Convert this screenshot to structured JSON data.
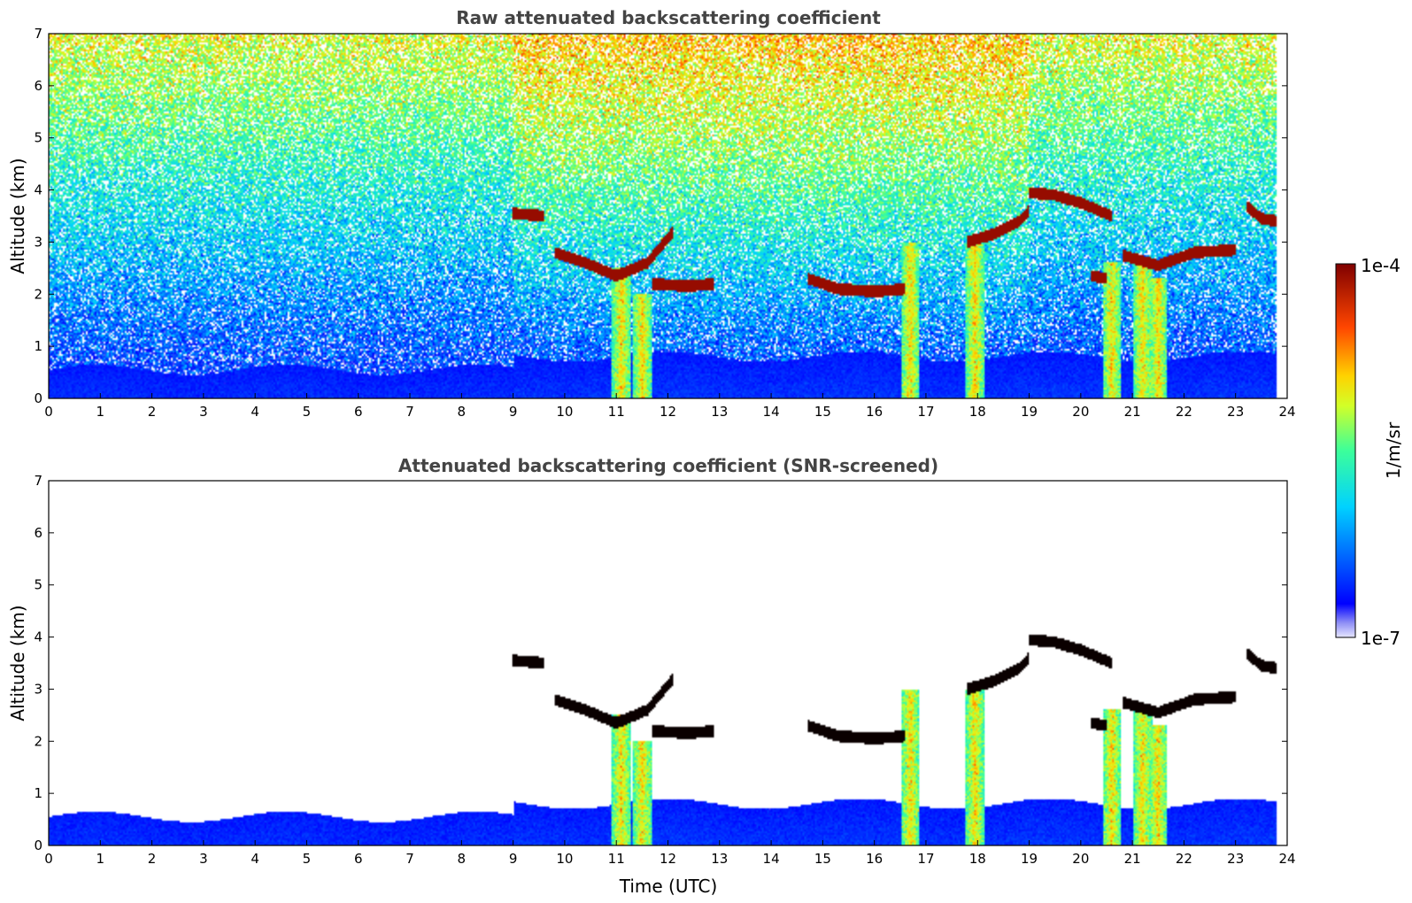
{
  "chart_data": [
    {
      "type": "heatmap",
      "title": "Raw attenuated backscattering coefficient",
      "xlabel": "",
      "ylabel": "Altitude (km)",
      "xlim": [
        0,
        24
      ],
      "ylim": [
        0,
        7
      ],
      "xticks": [
        "0",
        "1",
        "2",
        "3",
        "4",
        "5",
        "6",
        "7",
        "8",
        "9",
        "10",
        "11",
        "12",
        "13",
        "14",
        "15",
        "16",
        "17",
        "18",
        "19",
        "20",
        "21",
        "22",
        "23",
        "24"
      ],
      "yticks": [
        "0",
        "1",
        "2",
        "3",
        "4",
        "5",
        "6",
        "7"
      ],
      "data_end_time": 23.8,
      "grid": false
    },
    {
      "type": "heatmap",
      "title": "Attenuated backscattering coefficient (SNR-screened)",
      "xlabel": "Time (UTC)",
      "ylabel": "Altitude (km)",
      "xlim": [
        0,
        24
      ],
      "ylim": [
        0,
        7
      ],
      "xticks": [
        "0",
        "1",
        "2",
        "3",
        "4",
        "5",
        "6",
        "7",
        "8",
        "9",
        "10",
        "11",
        "12",
        "13",
        "14",
        "15",
        "16",
        "17",
        "18",
        "19",
        "20",
        "21",
        "22",
        "23",
        "24"
      ],
      "yticks": [
        "0",
        "1",
        "2",
        "3",
        "4",
        "5",
        "6",
        "7"
      ],
      "data_end_time": 23.8,
      "grid": false
    }
  ],
  "colorbar": {
    "label": "1/m/sr",
    "max_label": "1e-4",
    "min_label": "1e-7",
    "scale": "log",
    "colormap": "jet"
  },
  "features": {
    "cloud_layers": [
      {
        "t": [
          9.0,
          9.6
        ],
        "z": [
          3.55,
          3.5
        ]
      },
      {
        "t": [
          9.8,
          10.4,
          11.0,
          11.6,
          12.1
        ],
        "z": [
          2.8,
          2.6,
          2.35,
          2.6,
          3.2
        ]
      },
      {
        "t": [
          11.7,
          12.4,
          12.9
        ],
        "z": [
          2.2,
          2.15,
          2.2
        ]
      },
      {
        "t": [
          14.7,
          15.3,
          16.0,
          16.6
        ],
        "z": [
          2.3,
          2.1,
          2.05,
          2.1
        ]
      },
      {
        "t": [
          17.8,
          18.3,
          18.8,
          19.0
        ],
        "z": [
          3.0,
          3.15,
          3.4,
          3.6
        ]
      },
      {
        "t": [
          19.0,
          19.5,
          20.0,
          20.6
        ],
        "z": [
          3.95,
          3.9,
          3.75,
          3.5
        ]
      },
      {
        "t": [
          20.2,
          20.5
        ],
        "z": [
          2.35,
          2.3
        ]
      },
      {
        "t": [
          20.8,
          21.5,
          22.2,
          23.0
        ],
        "z": [
          2.75,
          2.55,
          2.8,
          2.85
        ]
      },
      {
        "t": [
          23.2,
          23.5,
          23.8
        ],
        "z": [
          3.7,
          3.45,
          3.4
        ]
      }
    ],
    "precip_columns": [
      {
        "t": 11.1,
        "top": 2.5
      },
      {
        "t": 11.5,
        "top": 2.0
      },
      {
        "t": 16.7,
        "top": 3.0
      },
      {
        "t": 17.95,
        "top": 3.0
      },
      {
        "t": 20.6,
        "top": 2.6
      },
      {
        "t": 21.2,
        "top": 2.6
      },
      {
        "t": 21.5,
        "top": 2.3
      }
    ]
  }
}
